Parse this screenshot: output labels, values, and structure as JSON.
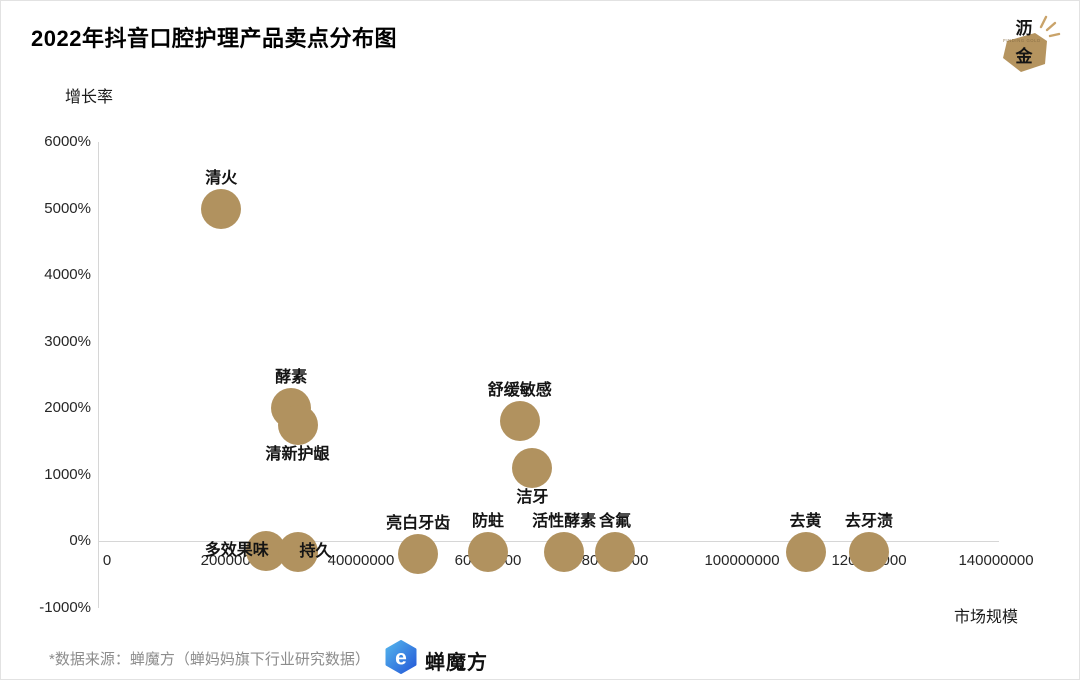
{
  "page": {
    "title": "2022年抖音口腔护理产品卖点分布图"
  },
  "corner_logo": {
    "char_top": "沥",
    "char_bottom": "金",
    "tagline": "FINDING GOLD",
    "gold_color": "#b5945f"
  },
  "footer": {
    "source_note": "*数据来源：蝉魔方（蝉妈妈旗下行业研究数据）",
    "brand_name": "蝉魔方",
    "brand_glyph": "e",
    "brand_blue_light": "#53b4ec",
    "brand_blue_dark": "#2559d8"
  },
  "chart_data": {
    "type": "scatter",
    "title": "2022年抖音口腔护理产品卖点分布图",
    "xlabel": "市场规模",
    "ylabel": "增长率",
    "xlim": [
      0,
      140000000
    ],
    "ylim_percent": [
      -1000,
      6000
    ],
    "grid": false,
    "legend": "none",
    "bubble_color": "#b1925f",
    "bubble_radius_px": 20,
    "x_ticks": [
      {
        "label": "0",
        "value": 0
      },
      {
        "label": "20000000",
        "value": 20000000
      },
      {
        "label": "40000000",
        "value": 40000000
      },
      {
        "label": "60000000",
        "value": 60000000
      },
      {
        "label": "80000000",
        "value": 80000000
      },
      {
        "label": "100000000",
        "value": 100000000
      },
      {
        "label": "120000000",
        "value": 120000000
      },
      {
        "label": "140000000",
        "value": 140000000
      }
    ],
    "y_ticks": [
      {
        "label": "6000%",
        "value": 6000
      },
      {
        "label": "5000%",
        "value": 5000
      },
      {
        "label": "4000%",
        "value": 4000
      },
      {
        "label": "3000%",
        "value": 3000
      },
      {
        "label": "2000%",
        "value": 2000
      },
      {
        "label": "1000%",
        "value": 1000
      },
      {
        "label": "0%",
        "value": 0
      },
      {
        "label": "-1000%",
        "value": -1000
      }
    ],
    "points": [
      {
        "label": "清火",
        "market_size": 18000000,
        "growth_percent": 5000,
        "label_pos": "top"
      },
      {
        "label": "酵素",
        "market_size": 29000000,
        "growth_percent": 2000,
        "label_pos": "top"
      },
      {
        "label": "清新护龈",
        "market_size": 30000000,
        "growth_percent": 1750,
        "label_pos": "bottom"
      },
      {
        "label": "舒缓敏感",
        "market_size": 65000000,
        "growth_percent": 1800,
        "label_pos": "top"
      },
      {
        "label": "洁牙",
        "market_size": 67000000,
        "growth_percent": 1100,
        "label_pos": "bottom"
      },
      {
        "label": "多效果味",
        "market_size": 25000000,
        "growth_percent": -150,
        "label_pos": "left"
      },
      {
        "label": "持久",
        "market_size": 30000000,
        "growth_percent": -160,
        "label_pos": "right"
      },
      {
        "label": "亮白牙齿",
        "market_size": 49000000,
        "growth_percent": -190,
        "label_pos": "top"
      },
      {
        "label": "防蛀",
        "market_size": 60000000,
        "growth_percent": -170,
        "label_pos": "top"
      },
      {
        "label": "活性酵素",
        "market_size": 72000000,
        "growth_percent": -160,
        "label_pos": "top"
      },
      {
        "label": "含氟",
        "market_size": 80000000,
        "growth_percent": -160,
        "label_pos": "top"
      },
      {
        "label": "去黄",
        "market_size": 110000000,
        "growth_percent": -160,
        "label_pos": "top"
      },
      {
        "label": "去牙渍",
        "market_size": 120000000,
        "growth_percent": -160,
        "label_pos": "top"
      }
    ]
  }
}
